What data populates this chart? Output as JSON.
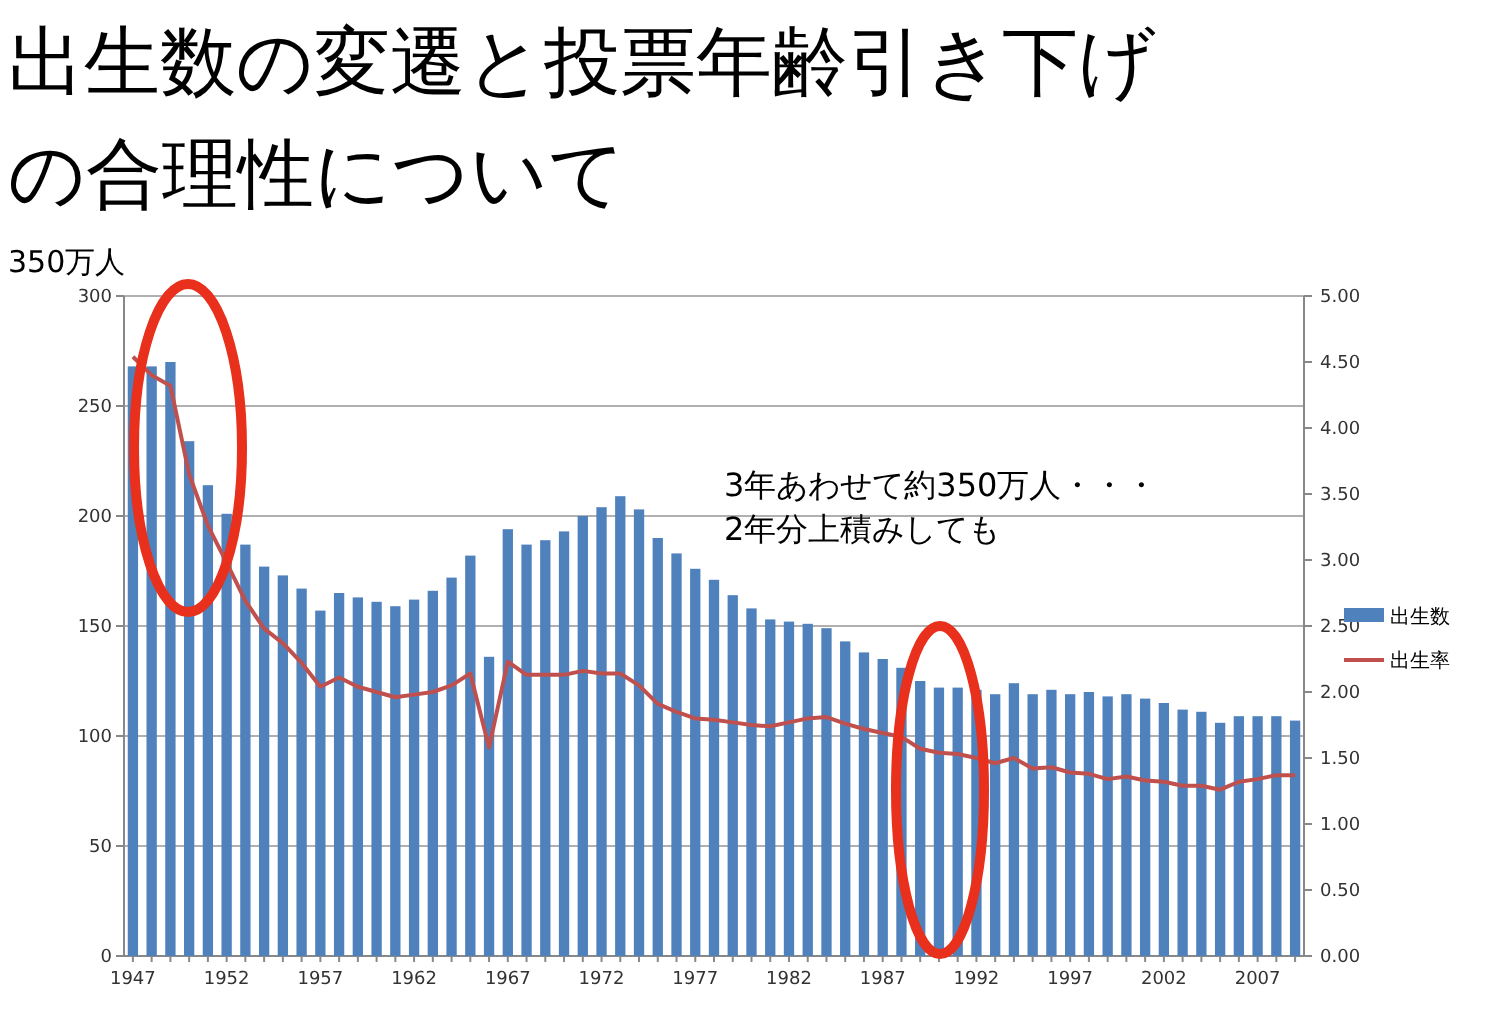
{
  "chart_data": {
    "type": "bar",
    "title": "出生数の変遷と投票年齢引き下げの合理性について",
    "categories": [
      "1947",
      null,
      null,
      null,
      null,
      "1952",
      null,
      null,
      null,
      null,
      "1957",
      null,
      null,
      null,
      null,
      "1962",
      null,
      null,
      null,
      null,
      "1967",
      null,
      null,
      null,
      null,
      "1972",
      null,
      null,
      null,
      null,
      "1977",
      null,
      null,
      null,
      null,
      "1982",
      null,
      null,
      null,
      null,
      "1987",
      null,
      null,
      null,
      null,
      "1992",
      null,
      null,
      null,
      null,
      "1997",
      null,
      null,
      null,
      null,
      "2002",
      null,
      null,
      null,
      null,
      "2007",
      null,
      null
    ],
    "series": [
      {
        "name": "出生数",
        "color": "#4f81bd",
        "values": [
          268,
          268,
          270,
          234,
          214,
          201,
          187,
          177,
          173,
          167,
          157,
          165,
          163,
          161,
          159,
          162,
          166,
          172,
          182,
          136,
          194,
          187,
          189,
          193,
          200,
          204,
          209,
          203,
          190,
          183,
          176,
          171,
          164,
          158,
          153,
          152,
          151,
          149,
          143,
          138,
          135,
          131,
          125,
          122,
          122,
          121,
          119,
          124,
          119,
          121,
          119,
          120,
          118,
          119,
          117,
          115,
          112,
          111,
          106,
          109,
          109,
          109,
          107
        ]
      },
      {
        "name": "出生率",
        "type": "line",
        "axis": "y2",
        "color": "#c0504d",
        "values": [
          4.54,
          4.4,
          4.32,
          3.65,
          3.26,
          2.98,
          2.69,
          2.48,
          2.37,
          2.22,
          2.04,
          2.11,
          2.04,
          2.0,
          1.96,
          1.98,
          2.0,
          2.05,
          2.14,
          1.58,
          2.23,
          2.13,
          2.13,
          2.13,
          2.16,
          2.14,
          2.14,
          2.05,
          1.91,
          1.85,
          1.8,
          1.79,
          1.77,
          1.75,
          1.74,
          1.77,
          1.8,
          1.81,
          1.76,
          1.72,
          1.69,
          1.66,
          1.57,
          1.54,
          1.53,
          1.5,
          1.46,
          1.5,
          1.42,
          1.43,
          1.39,
          1.38,
          1.34,
          1.36,
          1.33,
          1.32,
          1.29,
          1.29,
          1.26,
          1.32,
          1.34,
          1.37,
          1.37
        ]
      }
    ],
    "ylim": [
      0,
      300
    ],
    "yticks": [
      0,
      50,
      100,
      150,
      200,
      250,
      300
    ],
    "y2lim": [
      0,
      5
    ],
    "y2ticks": [
      {
        "value": 0,
        "label": "0.00"
      },
      {
        "value": 0.5,
        "label": "0.50"
      },
      {
        "value": 1,
        "label": "1.00"
      },
      {
        "value": 1.5,
        "label": "1.50"
      },
      {
        "value": 2,
        "label": "2.00"
      },
      {
        "value": 2.5,
        "label": "2.50"
      },
      {
        "value": 3,
        "label": "3.00"
      },
      {
        "value": 3.5,
        "label": "3.50"
      },
      {
        "value": 4,
        "label": "4.00"
      },
      {
        "value": 4.5,
        "label": "4.50"
      },
      {
        "value": 5,
        "label": "5.00"
      }
    ],
    "grid": "y",
    "legend": "right",
    "marker": "none",
    "line_style": "solid",
    "annotations": [
      "350万人",
      "3年あわせて約350万人・・・",
      "2年分上積みしても"
    ]
  }
}
